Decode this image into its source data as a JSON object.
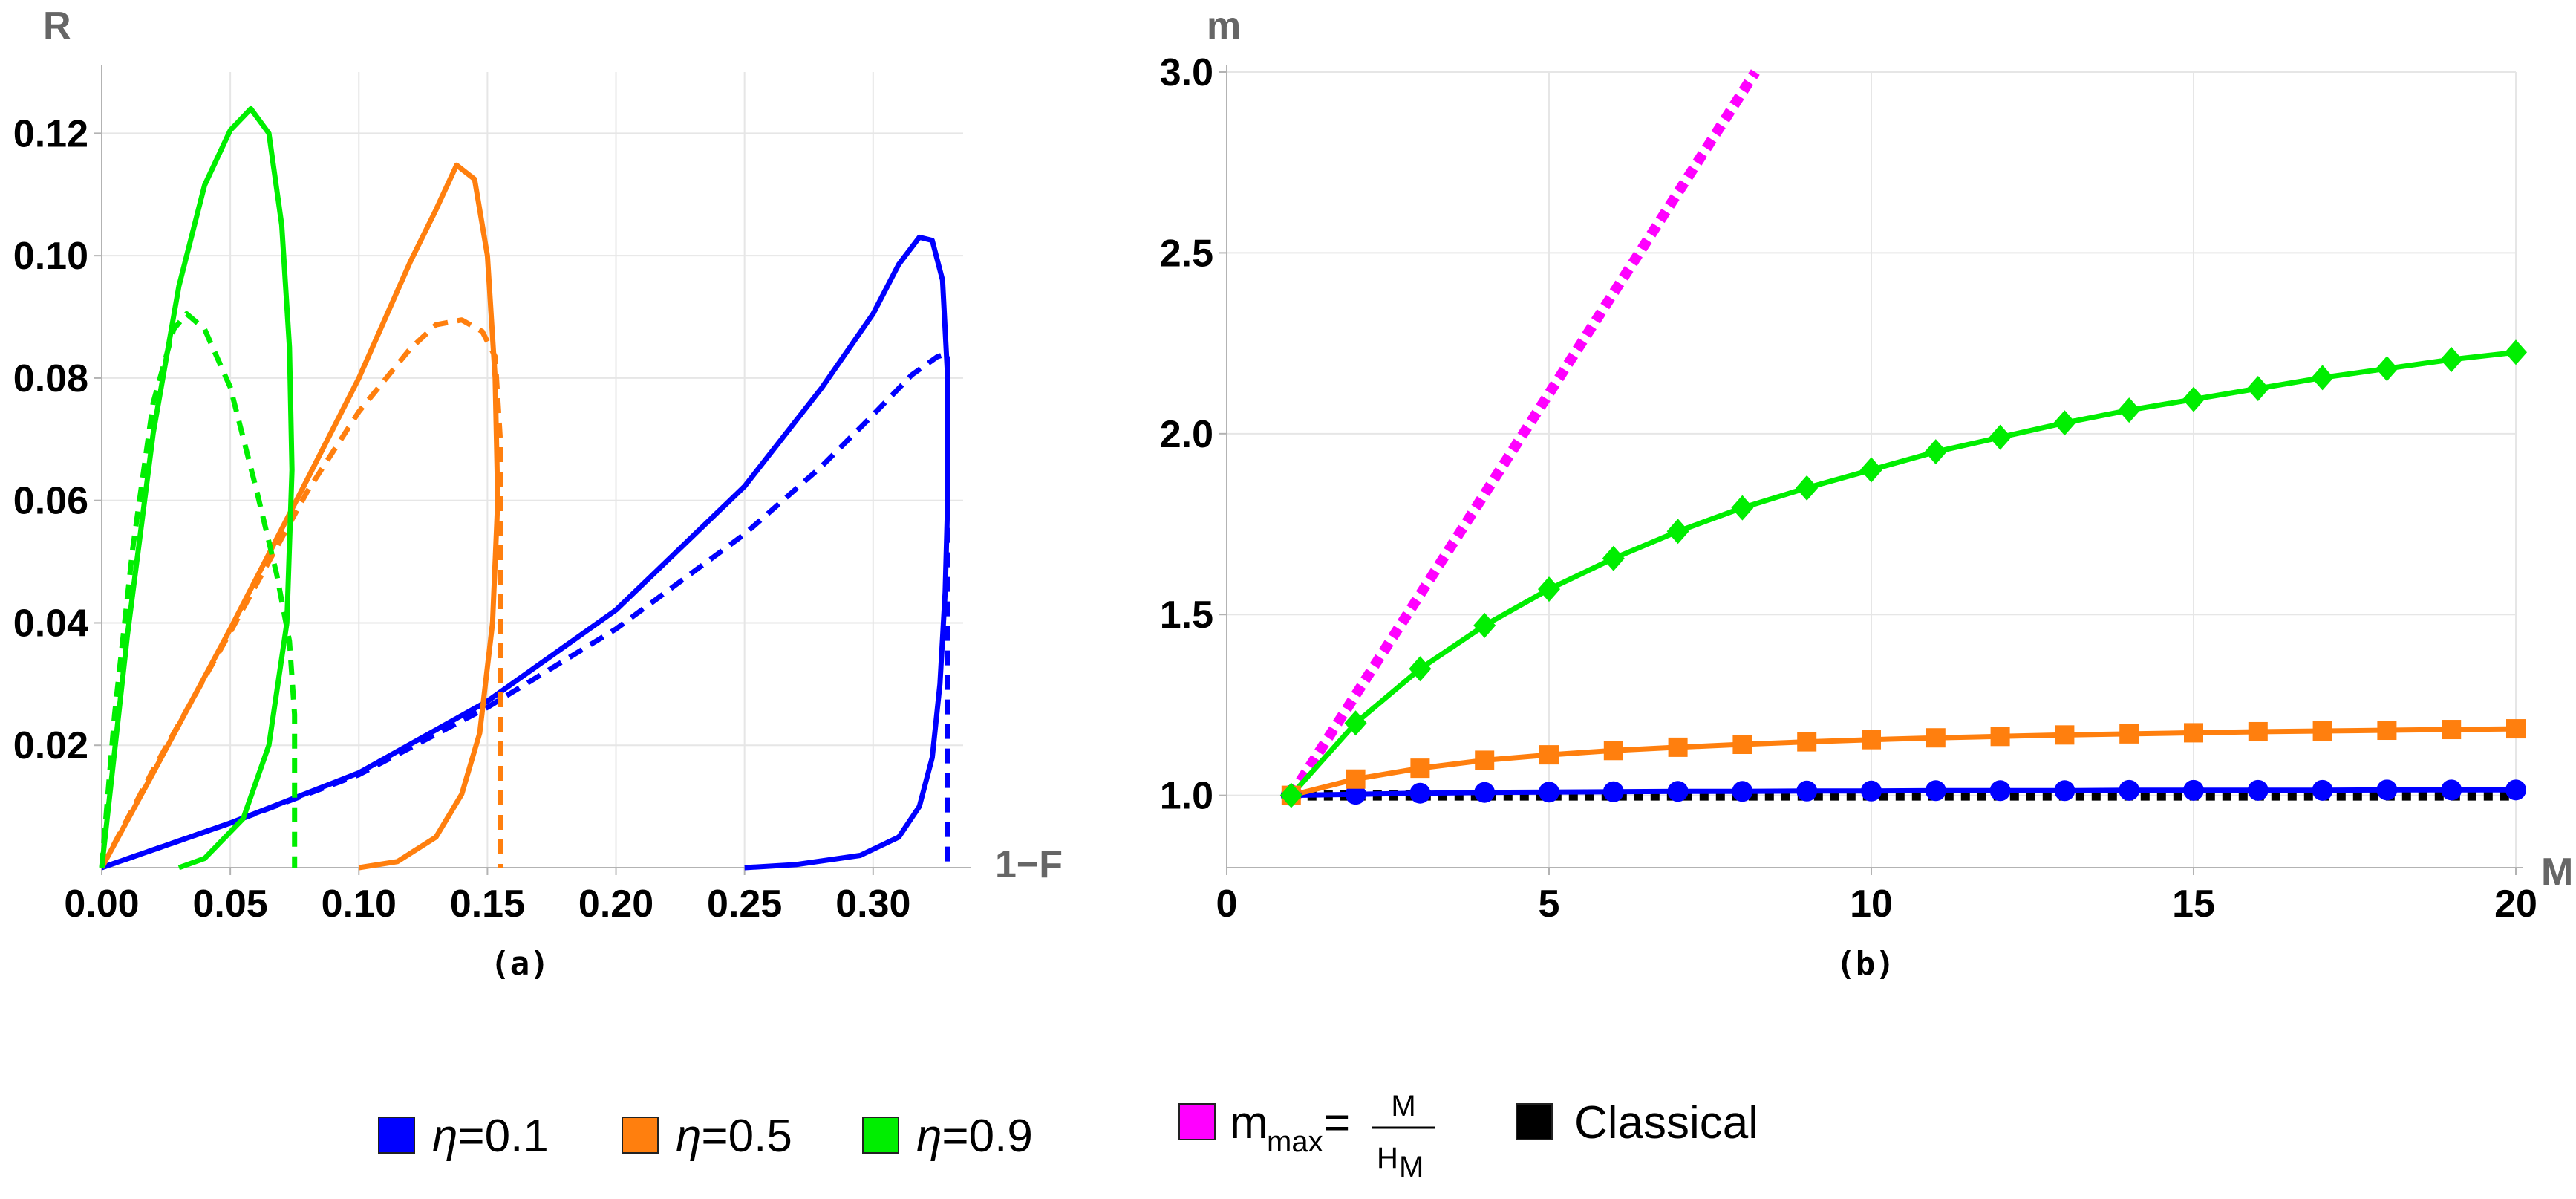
{
  "chart_data": [
    {
      "panel": "(a)",
      "type": "line",
      "xlabel": "1−F",
      "ylabel": "R",
      "xlim": [
        0,
        0.335
      ],
      "ylim": [
        0,
        0.13
      ],
      "xticks": [
        0.0,
        0.05,
        0.1,
        0.15,
        0.2,
        0.25,
        0.3
      ],
      "xtick_labels": [
        "0.00",
        "0.05",
        "0.10",
        "0.15",
        "0.20",
        "0.25",
        "0.30"
      ],
      "yticks": [
        0.02,
        0.04,
        0.06,
        0.08,
        0.1,
        0.12
      ],
      "ytick_labels": [
        "0.02",
        "0.04",
        "0.06",
        "0.08",
        "0.10",
        "0.12"
      ],
      "grid": true,
      "series": [
        {
          "name": "η=0.1 solid",
          "color": "#0000ff",
          "dash": false,
          "points": [
            [
              0,
              0
            ],
            [
              0.05,
              0.0073
            ],
            [
              0.1,
              0.0155
            ],
            [
              0.15,
              0.0272
            ],
            [
              0.2,
              0.0421
            ],
            [
              0.25,
              0.0623
            ],
            [
              0.28,
              0.0784
            ],
            [
              0.3,
              0.0905
            ],
            [
              0.31,
              0.0986
            ],
            [
              0.318,
              0.103
            ],
            [
              0.323,
              0.1025
            ],
            [
              0.327,
              0.096
            ],
            [
              0.329,
              0.08
            ],
            [
              0.329,
              0.06
            ],
            [
              0.328,
              0.045
            ],
            [
              0.326,
              0.03
            ],
            [
              0.323,
              0.018
            ],
            [
              0.318,
              0.01
            ],
            [
              0.31,
              0.005
            ],
            [
              0.295,
              0.002
            ],
            [
              0.27,
              0.0005
            ],
            [
              0.25,
              0
            ]
          ]
        },
        {
          "name": "η=0.1 dashed",
          "color": "#0000ff",
          "dash": true,
          "points": [
            [
              0,
              0
            ],
            [
              0.05,
              0.0073
            ],
            [
              0.1,
              0.0152
            ],
            [
              0.15,
              0.0262
            ],
            [
              0.2,
              0.039
            ],
            [
              0.25,
              0.0545
            ],
            [
              0.28,
              0.0656
            ],
            [
              0.3,
              0.074
            ],
            [
              0.315,
              0.0805
            ],
            [
              0.325,
              0.0835
            ],
            [
              0.329,
              0.084
            ],
            [
              0.329,
              0.07
            ],
            [
              0.329,
              0
            ]
          ]
        },
        {
          "name": "η=0.5 solid",
          "color": "#ff7f0e",
          "dash": false,
          "points": [
            [
              0,
              0
            ],
            [
              0.02,
              0.0155
            ],
            [
              0.05,
              0.039
            ],
            [
              0.08,
              0.0635
            ],
            [
              0.1,
              0.08
            ],
            [
              0.12,
              0.099
            ],
            [
              0.13,
              0.1075
            ],
            [
              0.138,
              0.1148
            ],
            [
              0.145,
              0.1125
            ],
            [
              0.15,
              0.1
            ],
            [
              0.153,
              0.08
            ],
            [
              0.154,
              0.06
            ],
            [
              0.152,
              0.04
            ],
            [
              0.147,
              0.022
            ],
            [
              0.14,
              0.012
            ],
            [
              0.13,
              0.005
            ],
            [
              0.115,
              0.001
            ],
            [
              0.1,
              0
            ]
          ]
        },
        {
          "name": "η=0.5 dashed",
          "color": "#ff7f0e",
          "dash": true,
          "points": [
            [
              0,
              0
            ],
            [
              0.02,
              0.016
            ],
            [
              0.05,
              0.0385
            ],
            [
              0.08,
              0.0615
            ],
            [
              0.1,
              0.0745
            ],
            [
              0.12,
              0.0848
            ],
            [
              0.13,
              0.0887
            ],
            [
              0.14,
              0.0895
            ],
            [
              0.148,
              0.0876
            ],
            [
              0.153,
              0.0835
            ],
            [
              0.155,
              0.07
            ],
            [
              0.155,
              0
            ]
          ]
        },
        {
          "name": "η=0.9 solid",
          "color": "#00ee00",
          "dash": false,
          "points": [
            [
              0,
              0
            ],
            [
              0.01,
              0.038
            ],
            [
              0.02,
              0.071
            ],
            [
              0.03,
              0.095
            ],
            [
              0.04,
              0.1115
            ],
            [
              0.05,
              0.1205
            ],
            [
              0.058,
              0.124
            ],
            [
              0.065,
              0.12
            ],
            [
              0.07,
              0.105
            ],
            [
              0.073,
              0.085
            ],
            [
              0.074,
              0.065
            ],
            [
              0.072,
              0.04
            ],
            [
              0.065,
              0.02
            ],
            [
              0.055,
              0.008
            ],
            [
              0.04,
              0.0015
            ],
            [
              0.03,
              0
            ]
          ]
        },
        {
          "name": "η=0.9 dashed",
          "color": "#00ee00",
          "dash": true,
          "points": [
            [
              0,
              0
            ],
            [
              0.005,
              0.025
            ],
            [
              0.012,
              0.052
            ],
            [
              0.02,
              0.076
            ],
            [
              0.028,
              0.088
            ],
            [
              0.033,
              0.0905
            ],
            [
              0.04,
              0.088
            ],
            [
              0.05,
              0.0785
            ],
            [
              0.06,
              0.062
            ],
            [
              0.068,
              0.048
            ],
            [
              0.073,
              0.037
            ],
            [
              0.075,
              0.025
            ],
            [
              0.075,
              0
            ]
          ]
        }
      ]
    },
    {
      "panel": "(b)",
      "type": "line",
      "xlabel": "M",
      "ylabel": "m",
      "xlim": [
        0,
        20
      ],
      "ylim": [
        0.8,
        3.0
      ],
      "xticks": [
        0,
        5,
        10,
        15,
        20
      ],
      "xtick_labels": [
        "0",
        "5",
        "10",
        "15",
        "20"
      ],
      "yticks": [
        1.0,
        1.5,
        2.0,
        2.5,
        3.0
      ],
      "ytick_labels": [
        "1.0",
        "1.5",
        "2.0",
        "2.5",
        "3.0"
      ],
      "grid": true,
      "series": [
        {
          "name": "m_max",
          "color": "#ff00ff",
          "style": "dotted",
          "x": [
            1,
            8.2
          ],
          "y": [
            1.0,
            3.0
          ]
        },
        {
          "name": "Classical",
          "color": "#000000",
          "style": "dotted",
          "x": [
            1,
            20
          ],
          "y": [
            1.0,
            1.0
          ]
        },
        {
          "name": "η=0.1",
          "color": "#0000ff",
          "marker": "circle",
          "x": [
            1,
            2,
            3,
            4,
            5,
            6,
            7,
            8,
            9,
            10,
            11,
            12,
            13,
            14,
            15,
            16,
            17,
            18,
            19,
            20
          ],
          "y": [
            1.0,
            1.003,
            1.006,
            1.008,
            1.009,
            1.01,
            1.011,
            1.011,
            1.012,
            1.012,
            1.013,
            1.013,
            1.013,
            1.014,
            1.014,
            1.014,
            1.014,
            1.015,
            1.015,
            1.015
          ]
        },
        {
          "name": "η=0.5",
          "color": "#ff7f0e",
          "marker": "square",
          "x": [
            1,
            2,
            3,
            4,
            5,
            6,
            7,
            8,
            9,
            10,
            11,
            12,
            13,
            14,
            15,
            16,
            17,
            18,
            19,
            20
          ],
          "y": [
            1.0,
            1.045,
            1.075,
            1.097,
            1.112,
            1.124,
            1.133,
            1.141,
            1.148,
            1.154,
            1.159,
            1.163,
            1.167,
            1.17,
            1.173,
            1.176,
            1.178,
            1.18,
            1.182,
            1.184
          ]
        },
        {
          "name": "η=0.9",
          "color": "#00ee00",
          "marker": "diamond",
          "x": [
            1,
            2,
            3,
            4,
            5,
            6,
            7,
            8,
            9,
            10,
            11,
            12,
            13,
            14,
            15,
            16,
            17,
            18,
            19,
            20
          ],
          "y": [
            1.0,
            1.2,
            1.35,
            1.47,
            1.57,
            1.655,
            1.73,
            1.795,
            1.85,
            1.9,
            1.95,
            1.99,
            2.03,
            2.065,
            2.095,
            2.125,
            2.155,
            2.18,
            2.205,
            2.225
          ]
        }
      ]
    }
  ],
  "legend": {
    "items": [
      {
        "label_prefix": "η",
        "label_rest": "=0.1",
        "color": "#0000ff"
      },
      {
        "label_prefix": "η",
        "label_rest": "=0.5",
        "color": "#ff7f0e"
      },
      {
        "label_prefix": "η",
        "label_rest": "=0.9",
        "color": "#00ee00"
      }
    ],
    "mmax": {
      "base": "m",
      "sub": "max",
      "eq": "=",
      "num": "M",
      "den_base": "H",
      "den_sub": "M",
      "color": "#ff00ff"
    },
    "classical": {
      "label": "Classical",
      "color": "#000000"
    }
  }
}
